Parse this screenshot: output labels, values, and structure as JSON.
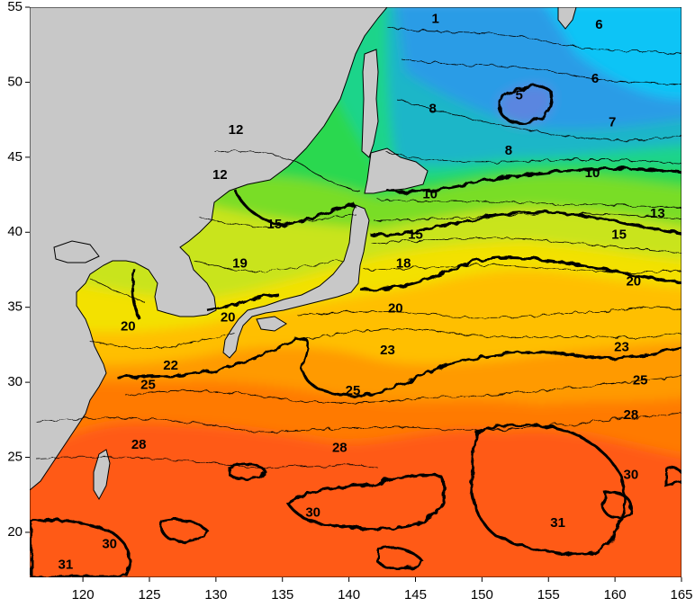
{
  "chart_data": {
    "type": "heatmap",
    "title": "",
    "xlabel": "",
    "ylabel": "",
    "xlim": [
      116,
      165
    ],
    "ylim": [
      17,
      55
    ],
    "x_ticks": [
      "120",
      "125",
      "130",
      "135",
      "140",
      "145",
      "150",
      "155",
      "160",
      "165"
    ],
    "y_ticks": [
      "55",
      "50",
      "45",
      "40",
      "35",
      "30",
      "25",
      "20"
    ],
    "colorscale": [
      {
        "value": 5,
        "color": "#3d8ee8"
      },
      {
        "value": 7,
        "color": "#1eaaf0"
      },
      {
        "value": 10,
        "color": "#1ed2a0"
      },
      {
        "value": 15,
        "color": "#35e035"
      },
      {
        "value": 19,
        "color": "#a8e630"
      },
      {
        "value": 23,
        "color": "#f5e800"
      },
      {
        "value": 25,
        "color": "#ffb800"
      },
      {
        "value": 28,
        "color": "#ff8000"
      },
      {
        "value": 31,
        "color": "#ff4a10"
      }
    ],
    "land_color": "#c8c8c8",
    "contour_labels": [
      {
        "text": "1",
        "lon": 146.5,
        "lat": 54.2
      },
      {
        "text": "6",
        "lon": 158.8,
        "lat": 53.8
      },
      {
        "text": "5",
        "lon": 152.8,
        "lat": 49.1
      },
      {
        "text": "6",
        "lon": 158.5,
        "lat": 50.2
      },
      {
        "text": "8",
        "lon": 146.3,
        "lat": 48.2
      },
      {
        "text": "7",
        "lon": 159.8,
        "lat": 47.3
      },
      {
        "text": "8",
        "lon": 152.0,
        "lat": 45.4
      },
      {
        "text": "12",
        "lon": 131.5,
        "lat": 46.8
      },
      {
        "text": "12",
        "lon": 130.3,
        "lat": 43.8
      },
      {
        "text": "10",
        "lon": 158.3,
        "lat": 43.9
      },
      {
        "text": "10",
        "lon": 146.1,
        "lat": 42.5
      },
      {
        "text": "13",
        "lon": 163.2,
        "lat": 41.2
      },
      {
        "text": "15",
        "lon": 134.4,
        "lat": 40.5
      },
      {
        "text": "15",
        "lon": 145.0,
        "lat": 39.8
      },
      {
        "text": "15",
        "lon": 160.3,
        "lat": 39.8
      },
      {
        "text": "19",
        "lon": 131.8,
        "lat": 37.9
      },
      {
        "text": "18",
        "lon": 144.1,
        "lat": 37.9
      },
      {
        "text": "20",
        "lon": 161.4,
        "lat": 36.7
      },
      {
        "text": "20",
        "lon": 143.5,
        "lat": 34.9
      },
      {
        "text": "20",
        "lon": 130.9,
        "lat": 34.3
      },
      {
        "text": "20",
        "lon": 123.4,
        "lat": 33.7
      },
      {
        "text": "23",
        "lon": 142.9,
        "lat": 32.1
      },
      {
        "text": "23",
        "lon": 160.5,
        "lat": 32.3
      },
      {
        "text": "22",
        "lon": 126.6,
        "lat": 31.1
      },
      {
        "text": "25",
        "lon": 161.9,
        "lat": 30.1
      },
      {
        "text": "25",
        "lon": 140.3,
        "lat": 29.4
      },
      {
        "text": "25",
        "lon": 124.9,
        "lat": 29.8
      },
      {
        "text": "28",
        "lon": 161.2,
        "lat": 27.8
      },
      {
        "text": "28",
        "lon": 124.2,
        "lat": 25.8
      },
      {
        "text": "28",
        "lon": 139.3,
        "lat": 25.6
      },
      {
        "text": "30",
        "lon": 161.2,
        "lat": 23.8
      },
      {
        "text": "30",
        "lon": 137.3,
        "lat": 21.3
      },
      {
        "text": "31",
        "lon": 155.7,
        "lat": 20.6
      },
      {
        "text": "30",
        "lon": 122.0,
        "lat": 19.2
      },
      {
        "text": "31",
        "lon": 118.7,
        "lat": 17.8
      }
    ]
  }
}
